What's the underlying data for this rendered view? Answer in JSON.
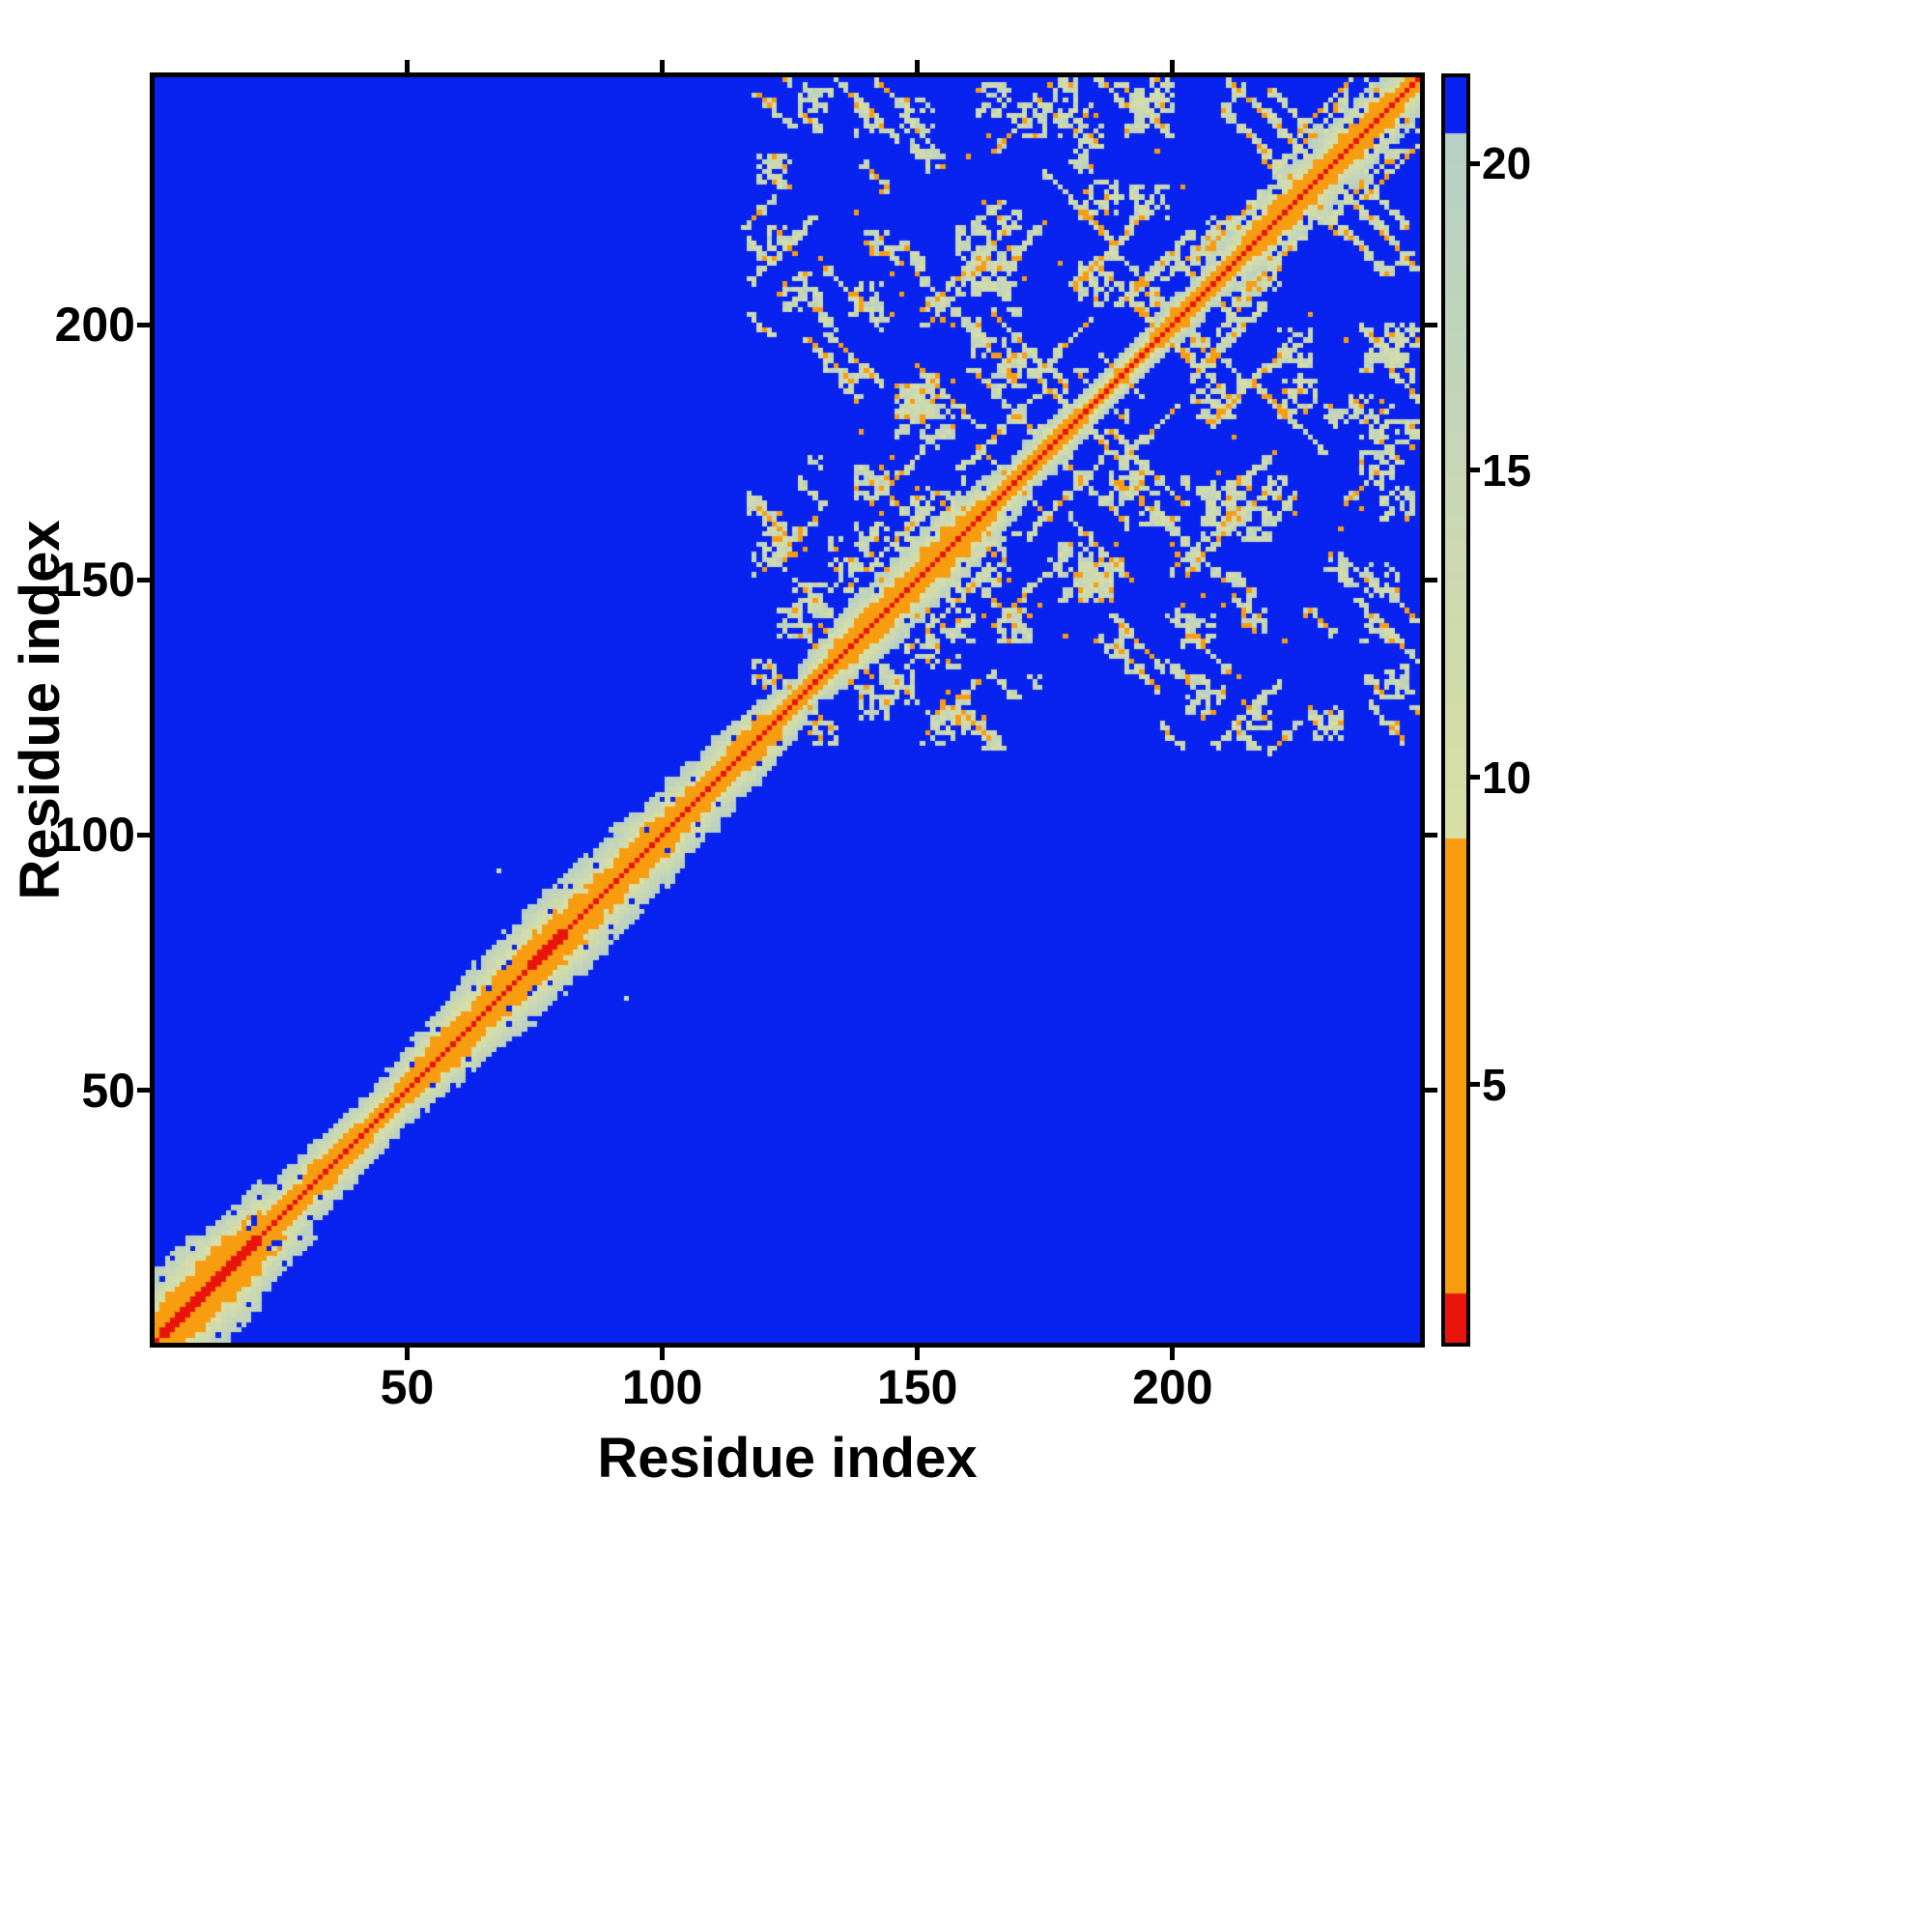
{
  "chart_data": {
    "type": "heatmap",
    "title": "",
    "xlabel": "Residue index",
    "ylabel": "Residue index",
    "x_ticks": [
      50,
      100,
      150,
      200
    ],
    "y_ticks": [
      50,
      100,
      150,
      200
    ],
    "axis_range": [
      1,
      248
    ],
    "n": 248,
    "grid": false,
    "legend": "colorbar-right",
    "colorbar": {
      "ticks": [
        5,
        10,
        15,
        20
      ],
      "domain_min": 0.8,
      "domain_max": 21.4
    },
    "colormap": {
      "red": "#e9150c",
      "orange": "#f99d10",
      "green_from": "#d9dfa4",
      "green_to": "#b7cfc5",
      "blue": "#0822f0",
      "red_max": 1.6,
      "orange_max": 9.0,
      "green_max": 20.5
    },
    "matrix_model": {
      "note": "residue-residue distance map, symmetric, red diagonal with orange/green near-diagonal band; long-range contact clusters only among residues above domain_start",
      "seed": 1337,
      "far_value": 22,
      "band_slope": 2.6,
      "band_bulges": [
        [
          2,
          20,
          1.35
        ],
        [
          100,
          122,
          1.45
        ]
      ],
      "domain_start": 118,
      "anti_streaks": 46,
      "par_streaks": 30,
      "blobs": 85,
      "orange_dots": 48,
      "orange_prob": 0.3,
      "diag_hairpins": [
        126,
        135,
        147,
        159,
        168,
        176,
        189,
        197,
        206,
        215,
        224,
        233,
        242
      ],
      "extra_contacts": [
        [
          67,
          92
        ]
      ]
    }
  }
}
